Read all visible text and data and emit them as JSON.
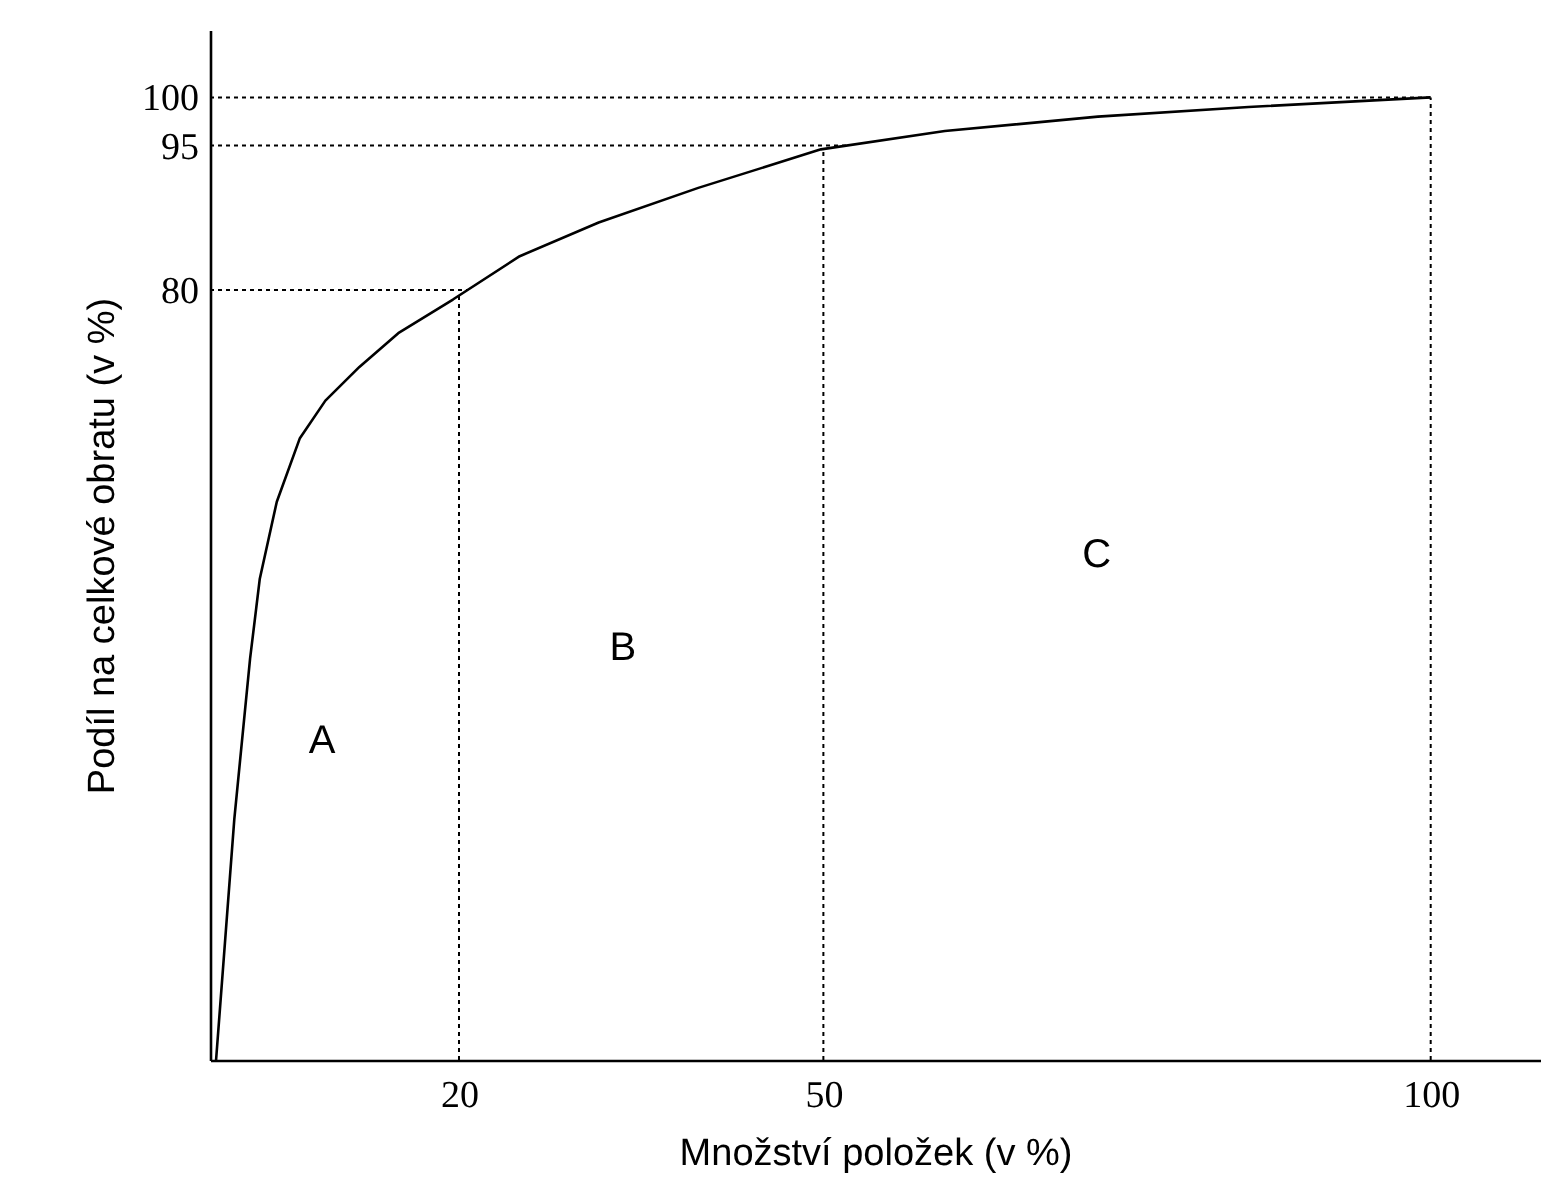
{
  "chart_data": {
    "type": "line",
    "xlabel": "Množství položek (v %)",
    "ylabel": "Podíl na celkové obratu (v %)",
    "x": [
      0,
      1.5,
      2.8,
      3.6,
      5,
      6.9,
      9,
      11.8,
      15,
      19.5,
      25,
      31.5,
      39.7,
      49.8,
      60,
      72.6,
      85,
      100
    ],
    "series": [
      {
        "color": "#000000",
        "values": [
          0,
          25,
          41.7,
          50,
          58,
          64.6,
          68.5,
          72,
          75.5,
          79,
          83.5,
          87,
          90.6,
          94.6,
          96.5,
          98,
          99,
          100
        ]
      }
    ],
    "xlim": [
      -0.5,
      109
    ],
    "ylim": [
      0,
      107
    ],
    "xticks": [
      20,
      50,
      100
    ],
    "yticks": [
      80,
      95,
      100
    ],
    "ref_lines": [
      {
        "axis": "x",
        "value": 20,
        "line_style": "dotted"
      },
      {
        "axis": "x",
        "value": 50,
        "line_style": "dotted"
      },
      {
        "axis": "x",
        "value": 100,
        "line_style": "dotted"
      },
      {
        "axis": "y",
        "value": 80,
        "line_style": "dotted"
      },
      {
        "axis": "y",
        "value": 95,
        "line_style": "dotted"
      },
      {
        "axis": "y",
        "value": 100,
        "line_style": "dotted"
      }
    ],
    "annotations": [
      "A",
      "B",
      "C"
    ],
    "grid": false,
    "marker": "none",
    "line_style": "solid"
  }
}
